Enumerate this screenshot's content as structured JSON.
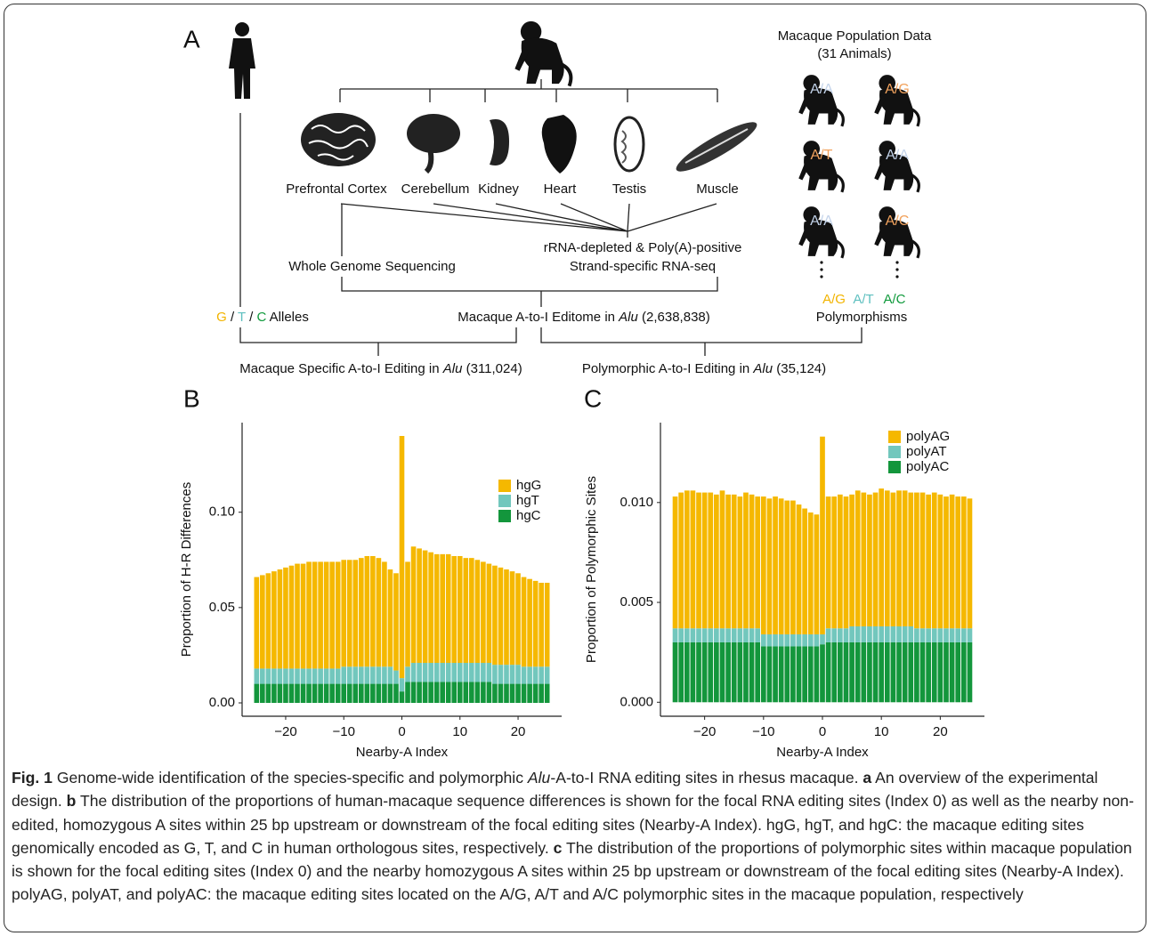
{
  "panel_a": {
    "label": "A",
    "population": {
      "title": "Macaque Population Data",
      "subtitle": "(31 Animals)",
      "genotypes": [
        "A/A",
        "A/G",
        "A/T",
        "A/A",
        "A/A",
        "A/C"
      ]
    },
    "tissues": [
      "Prefrontal Cortex",
      "Cerebellum",
      "Kidney",
      "Heart",
      "Testis",
      "Muscle"
    ],
    "methods": {
      "wgs": "Whole Genome Sequencing",
      "rnaseq": [
        "rRNA-depleted & Poly(A)-positive",
        "Strand-specific RNA-seq"
      ]
    },
    "alleles": [
      "G",
      " / ",
      "T",
      " / ",
      "C",
      " Alleles"
    ],
    "polymorphisms": {
      "types": [
        "A/G",
        "A/T",
        "A/C"
      ],
      "label": "Polymorphisms"
    },
    "editome": [
      "Macaque A-to-I Editome in ",
      "Alu",
      " (2,638,838)"
    ],
    "specific": [
      "Macaque Specific A-to-I Editing in ",
      "Alu",
      " (311,024)"
    ],
    "polymorphic": [
      "Polymorphic A-to-I Editing in ",
      "Alu",
      " (35,124)"
    ]
  },
  "chart_data": [
    {
      "type": "bar",
      "stacked": true,
      "panel": "B",
      "x_label": "Nearby-A Index",
      "y_label": "Proportion of H-R Differences",
      "x": [
        -25,
        -24,
        -23,
        -22,
        -21,
        -20,
        -19,
        -18,
        -17,
        -16,
        -15,
        -14,
        -13,
        -12,
        -11,
        -10,
        -9,
        -8,
        -7,
        -6,
        -5,
        -4,
        -3,
        -2,
        -1,
        0,
        1,
        2,
        3,
        4,
        5,
        6,
        7,
        8,
        9,
        10,
        11,
        12,
        13,
        14,
        15,
        16,
        17,
        18,
        19,
        20,
        21,
        22,
        23,
        24,
        25
      ],
      "xlim": [
        -27.5,
        27.5
      ],
      "xticks": [
        {
          "value": -20,
          "label": "−20"
        },
        {
          "value": -10,
          "label": "−10"
        },
        0,
        10,
        20
      ],
      "ylim": [
        -0.007,
        0.147
      ],
      "yticks": [
        {
          "value": 0,
          "label": "0.00"
        },
        {
          "value": 0.05,
          "label": "0.05"
        },
        {
          "value": 0.1,
          "label": "0.10"
        }
      ],
      "legend": "top-right",
      "series": [
        {
          "name": "hgG",
          "color": "#f5b800",
          "values": [
            0.048,
            0.049,
            0.05,
            0.051,
            0.052,
            0.053,
            0.054,
            0.055,
            0.055,
            0.056,
            0.056,
            0.056,
            0.056,
            0.056,
            0.056,
            0.056,
            0.056,
            0.056,
            0.057,
            0.058,
            0.058,
            0.057,
            0.055,
            0.051,
            0.051,
            0.127,
            0.055,
            0.061,
            0.06,
            0.059,
            0.058,
            0.057,
            0.057,
            0.057,
            0.056,
            0.056,
            0.055,
            0.055,
            0.054,
            0.053,
            0.052,
            0.052,
            0.051,
            0.05,
            0.049,
            0.048,
            0.047,
            0.046,
            0.045,
            0.044,
            0.044
          ]
        },
        {
          "name": "hgT",
          "color": "#72c7bd",
          "values": [
            0.008,
            0.008,
            0.008,
            0.008,
            0.008,
            0.008,
            0.008,
            0.008,
            0.008,
            0.008,
            0.008,
            0.008,
            0.008,
            0.008,
            0.008,
            0.009,
            0.009,
            0.009,
            0.009,
            0.009,
            0.009,
            0.009,
            0.009,
            0.009,
            0.007,
            0.007,
            0.008,
            0.01,
            0.01,
            0.01,
            0.01,
            0.01,
            0.01,
            0.01,
            0.01,
            0.01,
            0.01,
            0.01,
            0.01,
            0.01,
            0.01,
            0.01,
            0.01,
            0.01,
            0.01,
            0.01,
            0.009,
            0.009,
            0.009,
            0.009,
            0.009
          ]
        },
        {
          "name": "hgC",
          "color": "#13963c",
          "values": [
            0.01,
            0.01,
            0.01,
            0.01,
            0.01,
            0.01,
            0.01,
            0.01,
            0.01,
            0.01,
            0.01,
            0.01,
            0.01,
            0.01,
            0.01,
            0.01,
            0.01,
            0.01,
            0.01,
            0.01,
            0.01,
            0.01,
            0.01,
            0.01,
            0.01,
            0.006,
            0.011,
            0.011,
            0.011,
            0.011,
            0.011,
            0.011,
            0.011,
            0.011,
            0.011,
            0.011,
            0.011,
            0.011,
            0.011,
            0.011,
            0.011,
            0.01,
            0.01,
            0.01,
            0.01,
            0.01,
            0.01,
            0.01,
            0.01,
            0.01,
            0.01
          ]
        }
      ]
    },
    {
      "type": "bar",
      "stacked": true,
      "panel": "C",
      "x_label": "Nearby-A Index",
      "y_label": "Proportion of Polymorphic Sites",
      "x": [
        -25,
        -24,
        -23,
        -22,
        -21,
        -20,
        -19,
        -18,
        -17,
        -16,
        -15,
        -14,
        -13,
        -12,
        -11,
        -10,
        -9,
        -8,
        -7,
        -6,
        -5,
        -4,
        -3,
        -2,
        -1,
        0,
        1,
        2,
        3,
        4,
        5,
        6,
        7,
        8,
        9,
        10,
        11,
        12,
        13,
        14,
        15,
        16,
        17,
        18,
        19,
        20,
        21,
        22,
        23,
        24,
        25
      ],
      "xlim": [
        -27.5,
        27.5
      ],
      "xticks": [
        {
          "value": -20,
          "label": "−20"
        },
        {
          "value": -10,
          "label": "−10"
        },
        0,
        10,
        20
      ],
      "ylim": [
        -0.0007,
        0.014
      ],
      "yticks": [
        {
          "value": 0,
          "label": "0.000"
        },
        {
          "value": 0.005,
          "label": "0.005"
        },
        {
          "value": 0.01,
          "label": "0.010"
        }
      ],
      "legend": "top-right",
      "series": [
        {
          "name": "polyAG",
          "color": "#f5b800",
          "values": [
            0.0066,
            0.0068,
            0.0069,
            0.0069,
            0.0068,
            0.0068,
            0.0068,
            0.0067,
            0.0069,
            0.0067,
            0.0067,
            0.0066,
            0.0068,
            0.0067,
            0.0066,
            0.0069,
            0.0068,
            0.0069,
            0.0068,
            0.0067,
            0.0067,
            0.0065,
            0.0063,
            0.0061,
            0.006,
            0.0099,
            0.0066,
            0.0066,
            0.0067,
            0.0066,
            0.0066,
            0.0068,
            0.0067,
            0.0066,
            0.0067,
            0.0069,
            0.0068,
            0.0067,
            0.0068,
            0.0068,
            0.0067,
            0.0068,
            0.0068,
            0.0067,
            0.0068,
            0.0067,
            0.0066,
            0.0067,
            0.0066,
            0.0066,
            0.0065
          ]
        },
        {
          "name": "polyAT",
          "color": "#72c7bd",
          "values": [
            0.0007,
            0.0007,
            0.0007,
            0.0007,
            0.0007,
            0.0007,
            0.0007,
            0.0007,
            0.0007,
            0.0007,
            0.0007,
            0.0007,
            0.0007,
            0.0007,
            0.0007,
            0.0006,
            0.0006,
            0.0006,
            0.0006,
            0.0006,
            0.0006,
            0.0006,
            0.0006,
            0.0006,
            0.0006,
            0.0005,
            0.0007,
            0.0007,
            0.0007,
            0.0007,
            0.0008,
            0.0008,
            0.0008,
            0.0008,
            0.0008,
            0.0008,
            0.0008,
            0.0008,
            0.0008,
            0.0008,
            0.0008,
            0.0007,
            0.0007,
            0.0007,
            0.0007,
            0.0007,
            0.0007,
            0.0007,
            0.0007,
            0.0007,
            0.0007
          ]
        },
        {
          "name": "polyAC",
          "color": "#13963c",
          "values": [
            0.003,
            0.003,
            0.003,
            0.003,
            0.003,
            0.003,
            0.003,
            0.003,
            0.003,
            0.003,
            0.003,
            0.003,
            0.003,
            0.003,
            0.003,
            0.0028,
            0.0028,
            0.0028,
            0.0028,
            0.0028,
            0.0028,
            0.0028,
            0.0028,
            0.0028,
            0.0028,
            0.0029,
            0.003,
            0.003,
            0.003,
            0.003,
            0.003,
            0.003,
            0.003,
            0.003,
            0.003,
            0.003,
            0.003,
            0.003,
            0.003,
            0.003,
            0.003,
            0.003,
            0.003,
            0.003,
            0.003,
            0.003,
            0.003,
            0.003,
            0.003,
            0.003,
            0.003
          ]
        }
      ]
    }
  ],
  "caption": {
    "parts": [
      "Fig. 1",
      " Genome-wide identification of the species-specific and polymorphic ",
      "Alu",
      "-A-to-I RNA editing sites in rhesus macaque. ",
      "a",
      " An overview of the experimental design. ",
      "b",
      " The distribution of the proportions of human-macaque sequence differences is shown for the focal RNA editing sites (Index 0) as well as the nearby non-edited, homozygous A sites within 25 bp upstream or downstream of the focal editing sites (Nearby-A Index). hgG, hgT, and hgC: the macaque editing sites genomically encoded as G, T, and C in human orthologous sites, respectively. ",
      "c",
      " The distribution of the proportions of polymorphic sites within macaque population is shown for the focal editing sites (Index 0) and the nearby homozygous A sites within 25 bp upstream or downstream of the focal editing sites (Nearby-A Index). polyAG, polyAT, and polyAC: the macaque editing sites located on the A/G, A/T and A/C polymorphic sites in the macaque population, respectively"
    ]
  }
}
